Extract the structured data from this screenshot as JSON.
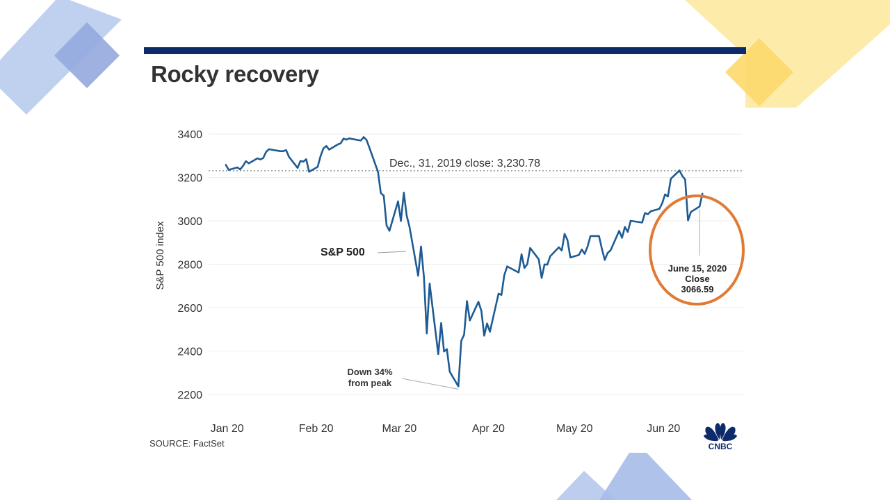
{
  "slide": {
    "colors": {
      "blue_shape": "#aec3ea",
      "blue_shape_dark": "#98ace0",
      "yellow_shape": "#fde58e",
      "yellow_shape_dark": "#fcd968"
    }
  },
  "chart_header": {
    "band_color": "#0d2a6b",
    "title": "Rocky recovery"
  },
  "source": "SOURCE: FactSet",
  "logo": {
    "icon": "cnbc-peacock-icon",
    "text": "CNBC"
  },
  "chart_data": {
    "type": "line",
    "title": "Rocky recovery",
    "xlabel": "",
    "ylabel": "S&P 500 index",
    "ylim": [
      2200,
      3400
    ],
    "yticks": [
      3400,
      3200,
      3000,
      2800,
      2600,
      2400,
      2200
    ],
    "xticks": [
      {
        "date": "2020-01-01",
        "label": "Jan 20"
      },
      {
        "date": "2020-02-01",
        "label": "Feb 20"
      },
      {
        "date": "2020-03-01",
        "label": "Mar 20"
      },
      {
        "date": "2020-04-01",
        "label": "Apr 20"
      },
      {
        "date": "2020-05-01",
        "label": "May 20"
      },
      {
        "date": "2020-06-01",
        "label": "Jun 20"
      }
    ],
    "xlim": [
      "2019-12-27",
      "2020-06-30"
    ],
    "grid": true,
    "line_color": "#1e5b94",
    "series": [
      {
        "name": "S&P 500",
        "x": [
          "2020-01-02",
          "2020-01-03",
          "2020-01-06",
          "2020-01-07",
          "2020-01-08",
          "2020-01-09",
          "2020-01-10",
          "2020-01-13",
          "2020-01-14",
          "2020-01-15",
          "2020-01-16",
          "2020-01-17",
          "2020-01-21",
          "2020-01-22",
          "2020-01-23",
          "2020-01-24",
          "2020-01-27",
          "2020-01-28",
          "2020-01-29",
          "2020-01-30",
          "2020-01-31",
          "2020-02-03",
          "2020-02-04",
          "2020-02-05",
          "2020-02-06",
          "2020-02-07",
          "2020-02-10",
          "2020-02-11",
          "2020-02-12",
          "2020-02-13",
          "2020-02-14",
          "2020-02-18",
          "2020-02-19",
          "2020-02-20",
          "2020-02-21",
          "2020-02-24",
          "2020-02-25",
          "2020-02-26",
          "2020-02-27",
          "2020-02-28",
          "2020-03-02",
          "2020-03-03",
          "2020-03-04",
          "2020-03-05",
          "2020-03-06",
          "2020-03-09",
          "2020-03-10",
          "2020-03-11",
          "2020-03-12",
          "2020-03-13",
          "2020-03-16",
          "2020-03-17",
          "2020-03-18",
          "2020-03-19",
          "2020-03-20",
          "2020-03-23",
          "2020-03-24",
          "2020-03-25",
          "2020-03-26",
          "2020-03-27",
          "2020-03-30",
          "2020-03-31",
          "2020-04-01",
          "2020-04-02",
          "2020-04-03",
          "2020-04-06",
          "2020-04-07",
          "2020-04-08",
          "2020-04-09",
          "2020-04-13",
          "2020-04-14",
          "2020-04-15",
          "2020-04-16",
          "2020-04-17",
          "2020-04-20",
          "2020-04-21",
          "2020-04-22",
          "2020-04-23",
          "2020-04-24",
          "2020-04-27",
          "2020-04-28",
          "2020-04-29",
          "2020-04-30",
          "2020-05-01",
          "2020-05-04",
          "2020-05-05",
          "2020-05-06",
          "2020-05-07",
          "2020-05-08",
          "2020-05-11",
          "2020-05-12",
          "2020-05-13",
          "2020-05-14",
          "2020-05-15",
          "2020-05-18",
          "2020-05-19",
          "2020-05-20",
          "2020-05-21",
          "2020-05-22",
          "2020-05-26",
          "2020-05-27",
          "2020-05-28",
          "2020-05-29",
          "2020-06-01",
          "2020-06-02",
          "2020-06-03",
          "2020-06-04",
          "2020-06-05",
          "2020-06-08",
          "2020-06-09",
          "2020-06-10",
          "2020-06-11",
          "2020-06-12",
          "2020-06-15",
          "2020-06-16"
        ],
        "values": [
          3258,
          3235,
          3246,
          3237,
          3253,
          3275,
          3265,
          3288,
          3283,
          3289,
          3317,
          3330,
          3321,
          3321,
          3326,
          3295,
          3244,
          3276,
          3273,
          3284,
          3226,
          3249,
          3298,
          3334,
          3345,
          3328,
          3352,
          3357,
          3379,
          3374,
          3380,
          3370,
          3386,
          3373,
          3338,
          3226,
          3128,
          3116,
          2979,
          2954,
          3090,
          2999,
          3130,
          3024,
          2972,
          2747,
          2882,
          2741,
          2481,
          2711,
          2386,
          2529,
          2398,
          2409,
          2305,
          2237,
          2447,
          2476,
          2630,
          2541,
          2627,
          2585,
          2471,
          2527,
          2489,
          2664,
          2659,
          2750,
          2790,
          2762,
          2846,
          2783,
          2800,
          2875,
          2823,
          2737,
          2799,
          2798,
          2837,
          2878,
          2863,
          2940,
          2912,
          2831,
          2843,
          2868,
          2848,
          2881,
          2930,
          2930,
          2870,
          2820,
          2852,
          2864,
          2954,
          2922,
          2972,
          2949,
          3000,
          2992,
          3036,
          3030,
          3044,
          3055,
          3081,
          3122,
          3112,
          3194,
          3232,
          3207,
          3190,
          3002,
          3041,
          3066,
          3125
        ]
      }
    ],
    "reference_line": {
      "value": 3230.78,
      "label": "Dec., 31, 2019 close:  3,230.78"
    },
    "annotations": [
      {
        "text": "S&P 500",
        "bold": true
      },
      {
        "lines": [
          "Down 34%",
          "from peak"
        ],
        "date": "2020-03-23",
        "value": 2237
      },
      {
        "lines": [
          "June 15, 2020",
          "Close",
          "3066.59"
        ],
        "date": "2020-06-15",
        "value": 3066.59,
        "highlight_color": "#e07b36"
      }
    ]
  }
}
